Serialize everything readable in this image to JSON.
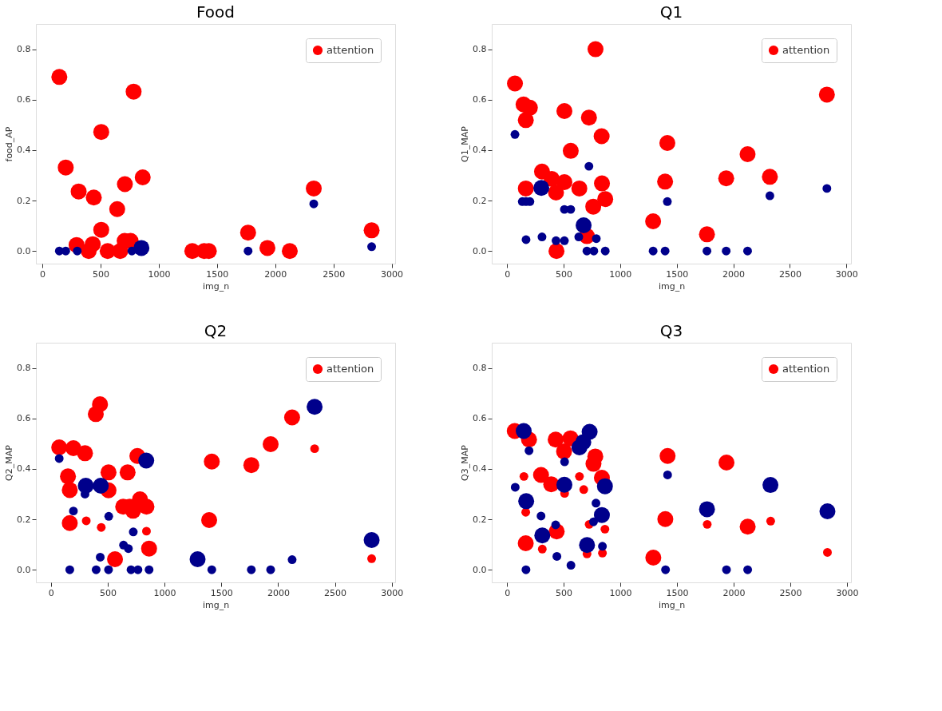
{
  "chart_data": [
    {
      "type": "bubble",
      "title": "Food",
      "xlabel": "img_n",
      "ylabel": "food_AP",
      "xlim": [
        -55,
        3030
      ],
      "ylim": [
        -0.05,
        0.9
      ],
      "xticks": [
        0,
        500,
        1000,
        1500,
        2000,
        2500,
        3000
      ],
      "yticks": [
        {
          "value": 0,
          "label": "0.0"
        },
        {
          "value": 0.2,
          "label": "0.2"
        },
        {
          "value": 0.4,
          "label": "0.4"
        },
        {
          "value": 0.6,
          "label": "0.6"
        },
        {
          "value": 0.8,
          "label": "0.8"
        }
      ],
      "grid": false,
      "legend": "top right",
      "marker": "circle",
      "series": [
        {
          "name": "attention",
          "color": "#ff0000",
          "x": [
            146,
            784,
            506,
            201,
            862,
            709,
            312,
            442,
            643,
            506,
            294,
            433,
            398,
            561,
            669,
            707,
            758,
            1288,
            1390,
            1430,
            1767,
            1933,
            2125,
            2331,
            2828
          ],
          "values": [
            0.69,
            0.632,
            0.472,
            0.331,
            0.292,
            0.265,
            0.236,
            0.212,
            0.166,
            0.084,
            0.024,
            0.027,
            0,
            0,
            0,
            0.04,
            0.04,
            0,
            0,
            0,
            0.073,
            0.012,
            0,
            0.248,
            0.082
          ],
          "sizes": [
            1,
            1,
            1,
            1,
            1,
            1,
            1,
            1,
            1,
            1,
            1,
            1,
            1,
            1,
            1,
            1,
            1,
            1,
            1,
            1,
            1,
            1,
            1,
            1,
            1
          ]
        },
        {
          "color": "#00008b",
          "x": [
            146,
            201,
            300,
            769,
            851,
            1767,
            2331,
            2828
          ],
          "values": [
            0,
            0,
            0,
            0,
            0.012,
            0,
            0.187,
            0.017
          ],
          "sizes": [
            0.3,
            0.3,
            0.3,
            0.3,
            1,
            0.3,
            0.3,
            0.3
          ]
        }
      ]
    },
    {
      "type": "bubble",
      "title": "Q1",
      "xlabel": "img_n",
      "ylabel": "Q1_MAP",
      "xlim": [
        -135,
        3040
      ],
      "ylim": [
        -0.05,
        0.9
      ],
      "xticks": [
        0,
        500,
        1000,
        1500,
        2000,
        2500,
        3000
      ],
      "yticks": [
        {
          "value": 0,
          "label": "0.0"
        },
        {
          "value": 0.2,
          "label": "0.2"
        },
        {
          "value": 0.4,
          "label": "0.4"
        },
        {
          "value": 0.6,
          "label": "0.6"
        },
        {
          "value": 0.8,
          "label": "0.8"
        }
      ],
      "grid": false,
      "legend": "top right",
      "marker": "circle",
      "series": [
        {
          "name": "attention",
          "color": "#ff0000",
          "x": [
            782,
            70,
            2827,
            146,
            202,
            166,
            507,
            724,
            836,
            563,
            1417,
            2126,
            1937,
            2323,
            1397,
            309,
            395,
            433,
            507,
            639,
            166,
            839,
            868,
            762,
            1291,
            1767,
            706,
            437
          ],
          "values": [
            0.8,
            0.664,
            0.62,
            0.581,
            0.568,
            0.519,
            0.555,
            0.529,
            0.455,
            0.397,
            0.428,
            0.384,
            0.288,
            0.294,
            0.275,
            0.315,
            0.286,
            0.232,
            0.273,
            0.248,
            0.248,
            0.268,
            0.206,
            0.176,
            0.118,
            0.066,
            0.059,
            0
          ],
          "sizes": [
            1,
            1,
            1,
            1,
            1,
            1,
            1,
            1,
            1,
            1,
            1,
            1,
            1,
            1,
            1,
            1,
            1,
            1,
            1,
            1,
            1,
            1,
            1,
            1,
            1,
            1,
            1,
            1
          ]
        },
        {
          "color": "#00008b",
          "x": [
            70,
            724,
            135,
            168,
            202,
            507,
            563,
            1417,
            2323,
            2827,
            168,
            309,
            433,
            507,
            634,
            789,
            706,
            767,
            868,
            1291,
            1397,
            1767,
            1937,
            2126,
            303,
            677
          ],
          "values": [
            0.462,
            0.336,
            0.196,
            0.196,
            0.196,
            0.165,
            0.165,
            0.196,
            0.219,
            0.248,
            0.045,
            0.056,
            0.041,
            0.041,
            0.056,
            0.049,
            0,
            0,
            0,
            0,
            0,
            0,
            0,
            0,
            0.25,
            0.102
          ],
          "sizes": [
            0.3,
            0.3,
            0.3,
            0.3,
            0.3,
            0.3,
            0.3,
            0.3,
            0.3,
            0.3,
            0.3,
            0.3,
            0.3,
            0.3,
            0.3,
            0.3,
            0.3,
            0.3,
            0.3,
            0.3,
            0.3,
            0.3,
            0.3,
            0.3,
            1,
            1
          ]
        }
      ]
    },
    {
      "type": "bubble",
      "title": "Q2",
      "xlabel": "img_n",
      "ylabel": "Q2_MAP",
      "xlim": [
        -132,
        3030
      ],
      "ylim": [
        -0.05,
        0.9
      ],
      "xticks": [
        0,
        500,
        1000,
        1500,
        2000,
        2500,
        3000
      ],
      "yticks": [
        {
          "value": 0,
          "label": "0.0"
        },
        {
          "value": 0.2,
          "label": "0.2"
        },
        {
          "value": 0.4,
          "label": "0.4"
        },
        {
          "value": 0.6,
          "label": "0.6"
        },
        {
          "value": 0.8,
          "label": "0.8"
        }
      ],
      "grid": false,
      "legend": "top right",
      "marker": "circle",
      "series": [
        {
          "name": "attention",
          "color": "#ff0000",
          "x": [
            432,
            395,
            73,
            198,
            300,
            761,
            2123,
            1934,
            1416,
            1764,
            507,
            675,
            150,
            166,
            507,
            636,
            693,
            723,
            784,
            841,
            1393,
            166,
            864,
            564,
            2321,
            311,
            443,
            841,
            2823
          ],
          "values": [
            0.656,
            0.617,
            0.485,
            0.482,
            0.462,
            0.451,
            0.604,
            0.498,
            0.429,
            0.415,
            0.386,
            0.386,
            0.37,
            0.316,
            0.315,
            0.25,
            0.25,
            0.234,
            0.279,
            0.25,
            0.197,
            0.185,
            0.084,
            0.042,
            0.48,
            0.194,
            0.168,
            0.153,
            0.044
          ],
          "sizes": [
            1,
            1,
            1,
            1,
            1,
            1,
            1,
            1,
            1,
            1,
            1,
            1,
            1,
            1,
            1,
            1,
            1,
            1,
            1,
            1,
            1,
            1,
            1,
            1,
            0.3,
            0.3,
            0.3,
            0.3,
            0.3
          ]
        },
        {
          "color": "#00008b",
          "x": [
            2321,
            839,
            307,
            439,
            1291,
            2823,
            73,
            300,
            198,
            509,
            725,
            639,
            682,
            434,
            2123,
            166,
            398,
            507,
            705,
            766,
            864,
            1416,
            1764,
            1934
          ],
          "values": [
            0.646,
            0.433,
            0.333,
            0.333,
            0.042,
            0.118,
            0.441,
            0.3,
            0.233,
            0.212,
            0.15,
            0.098,
            0.084,
            0.05,
            0.04,
            0,
            0,
            0,
            0,
            0,
            0,
            0,
            0,
            0
          ],
          "sizes": [
            1,
            1,
            1,
            1,
            1,
            1,
            0.3,
            0.3,
            0.3,
            0.3,
            0.3,
            0.3,
            0.3,
            0.3,
            0.3,
            0.3,
            0.3,
            0.3,
            0.3,
            0.3,
            0.3,
            0.3,
            0.3,
            0.3
          ]
        }
      ]
    },
    {
      "type": "bubble",
      "title": "Q3",
      "xlabel": "img_n",
      "ylabel": "Q3_MAP",
      "xlim": [
        -135,
        3036
      ],
      "ylim": [
        -0.05,
        0.9
      ],
      "xticks": [
        0,
        500,
        1000,
        1500,
        2000,
        2500,
        3000
      ],
      "yticks": [
        {
          "value": 0,
          "label": "0.0"
        },
        {
          "value": 0.2,
          "label": "0.2"
        },
        {
          "value": 0.4,
          "label": "0.4"
        },
        {
          "value": 0.6,
          "label": "0.6"
        },
        {
          "value": 0.8,
          "label": "0.8"
        }
      ],
      "grid": false,
      "legend": "top right",
      "marker": "circle",
      "series": [
        {
          "name": "attention",
          "color": "#ff0000",
          "x": [
            68,
            194,
            429,
            560,
            503,
            779,
            763,
            1417,
            1937,
            300,
            390,
            837,
            1397,
            2124,
            438,
            165,
            1291,
            149,
            639,
            677,
            508,
            165,
            725,
            864,
            311,
            706,
            842,
            1767,
            2327,
            2828
          ],
          "values": [
            0.55,
            0.516,
            0.516,
            0.521,
            0.469,
            0.449,
            0.42,
            0.451,
            0.425,
            0.376,
            0.339,
            0.365,
            0.201,
            0.171,
            0.152,
            0.105,
            0.048,
            0.37,
            0.37,
            0.318,
            0.303,
            0.228,
            0.18,
            0.161,
            0.082,
            0.063,
            0.066,
            0.18,
            0.193,
            0.069
          ],
          "sizes": [
            1,
            1,
            1,
            1,
            1,
            1,
            1,
            1,
            1,
            1,
            1,
            1,
            1,
            1,
            1,
            1,
            1,
            0.3,
            0.3,
            0.3,
            0.3,
            0.3,
            0.3,
            0.3,
            0.3,
            0.3,
            0.3,
            0.3,
            0.3,
            0.3
          ]
        },
        {
          "color": "#00008b",
          "x": [
            147,
            729,
            639,
            673,
            506,
            864,
            169,
            837,
            311,
            706,
            1765,
            2325,
            2828,
            194,
            508,
            72,
            785,
            300,
            429,
            763,
            1417,
            842,
            440,
            564,
            167,
            1399,
            1937,
            2124
          ],
          "values": [
            0.55,
            0.547,
            0.485,
            0.506,
            0.337,
            0.331,
            0.272,
            0.217,
            0.136,
            0.098,
            0.24,
            0.336,
            0.232,
            0.472,
            0.428,
            0.327,
            0.264,
            0.213,
            0.178,
            0.19,
            0.376,
            0.093,
            0.053,
            0.018,
            0,
            0,
            0,
            0
          ],
          "sizes": [
            1,
            1,
            1,
            1,
            1,
            1,
            1,
            1,
            1,
            1,
            1,
            1,
            1,
            0.3,
            0.3,
            0.3,
            0.3,
            0.3,
            0.3,
            0.3,
            0.3,
            0.3,
            0.3,
            0.3,
            0.3,
            0.3,
            0.3,
            0.3
          ]
        }
      ]
    }
  ]
}
